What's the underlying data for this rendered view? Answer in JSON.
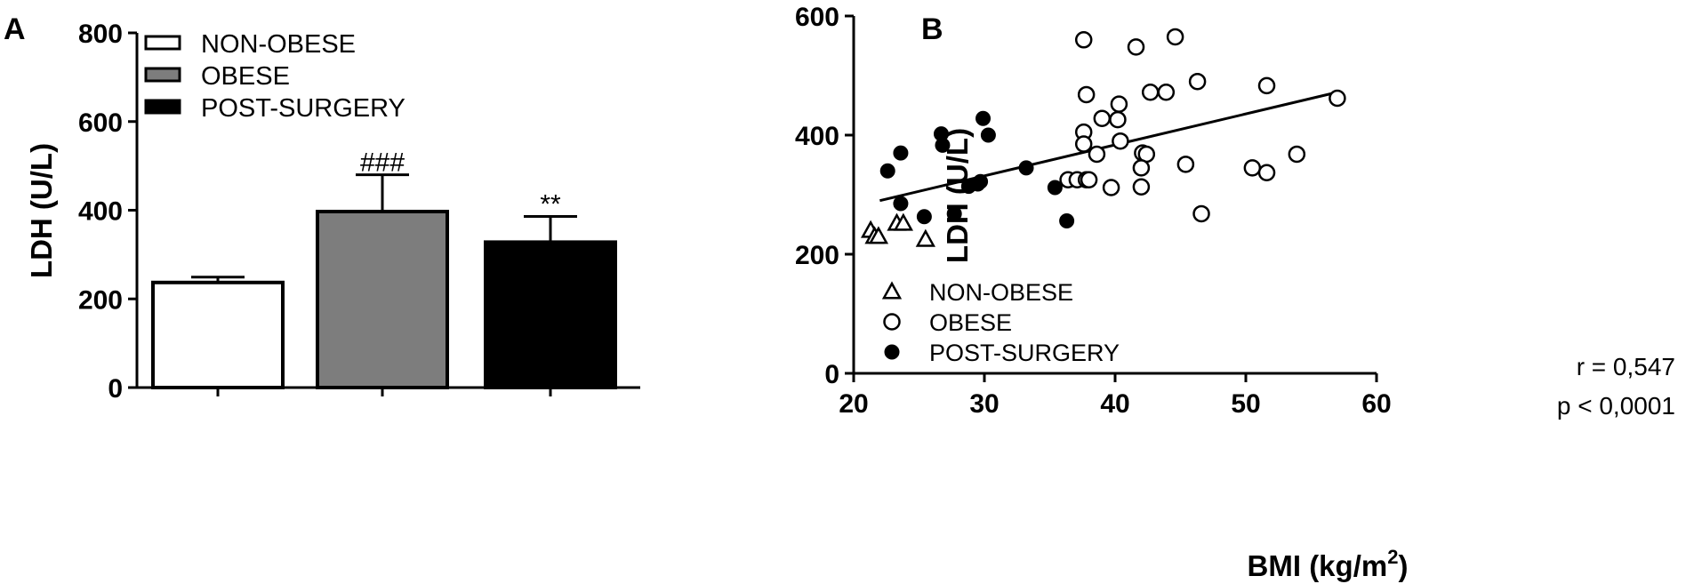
{
  "chart_data": [
    {
      "panel_label": "A",
      "type": "bar",
      "ylabel": "LDH (U/L)",
      "ylim": [
        0,
        800
      ],
      "yticks": [
        "0",
        "200",
        "400",
        "600",
        "800"
      ],
      "categories": [
        "NON-OBESE",
        "OBESE",
        "POST-SURGERY"
      ],
      "values": [
        237,
        397,
        328
      ],
      "errors": [
        12,
        83,
        58
      ],
      "significance": [
        "",
        "###",
        "**"
      ],
      "colors": [
        "#ffffff",
        "#7d7d7d",
        "#000000"
      ],
      "legend": [
        "NON-OBESE",
        "OBESE",
        "POST-SURGERY"
      ],
      "legend_position": "top-left"
    },
    {
      "panel_label": "B",
      "type": "scatter",
      "xlabel_main": "BMI (kg/m",
      "xlabel_sup": "2",
      "xlabel_end": ")",
      "ylabel": "LDH (U/L)",
      "xlim": [
        20,
        60
      ],
      "ylim": [
        0,
        600
      ],
      "xticks": [
        "20",
        "30",
        "40",
        "50",
        "60"
      ],
      "yticks": [
        "0",
        "200",
        "400",
        "600"
      ],
      "legend": [
        "NON-OBESE",
        "OBESE",
        "POST-SURGERY"
      ],
      "legend_position": "bottom-left",
      "stats": [
        "r = 0,547",
        "p < 0,0001"
      ],
      "regression": {
        "x": [
          22,
          57
        ],
        "y": [
          290,
          472
        ]
      },
      "series": [
        {
          "name": "NON-OBESE",
          "marker": "triangle-open",
          "points": [
            [
              21.3,
              240
            ],
            [
              21.6,
              230
            ],
            [
              21.9,
              230
            ],
            [
              23.3,
              252
            ],
            [
              23.8,
              252
            ],
            [
              25.5,
              225
            ]
          ]
        },
        {
          "name": "OBESE",
          "marker": "circle-open",
          "points": [
            [
              37.6,
              560
            ],
            [
              41.6,
              548
            ],
            [
              44.6,
              565
            ],
            [
              37.8,
              468
            ],
            [
              40.3,
              452
            ],
            [
              42.7,
              472
            ],
            [
              43.9,
              472
            ],
            [
              46.3,
              490
            ],
            [
              51.6,
              483
            ],
            [
              57.0,
              462
            ],
            [
              39.0,
              428
            ],
            [
              40.2,
              426
            ],
            [
              37.6,
              405
            ],
            [
              37.6,
              385
            ],
            [
              40.4,
              390
            ],
            [
              38.6,
              368
            ],
            [
              42.1,
              370
            ],
            [
              42.4,
              368
            ],
            [
              36.4,
              325
            ],
            [
              37.1,
              325
            ],
            [
              37.8,
              325
            ],
            [
              38.0,
              325
            ],
            [
              39.7,
              312
            ],
            [
              42.0,
              345
            ],
            [
              42.0,
              313
            ],
            [
              45.4,
              351
            ],
            [
              50.5,
              345
            ],
            [
              51.6,
              337
            ],
            [
              53.9,
              368
            ],
            [
              46.6,
              268
            ]
          ]
        },
        {
          "name": "POST-SURGERY",
          "marker": "circle-filled",
          "points": [
            [
              22.6,
              340
            ],
            [
              23.6,
              370
            ],
            [
              23.6,
              285
            ],
            [
              25.4,
              263
            ],
            [
              26.7,
              402
            ],
            [
              26.8,
              383
            ],
            [
              27.7,
              268
            ],
            [
              28.8,
              314
            ],
            [
              29.5,
              318
            ],
            [
              29.7,
              322
            ],
            [
              29.9,
              428
            ],
            [
              30.3,
              400
            ],
            [
              33.2,
              345
            ],
            [
              35.4,
              312
            ],
            [
              36.3,
              256
            ]
          ]
        }
      ]
    }
  ]
}
